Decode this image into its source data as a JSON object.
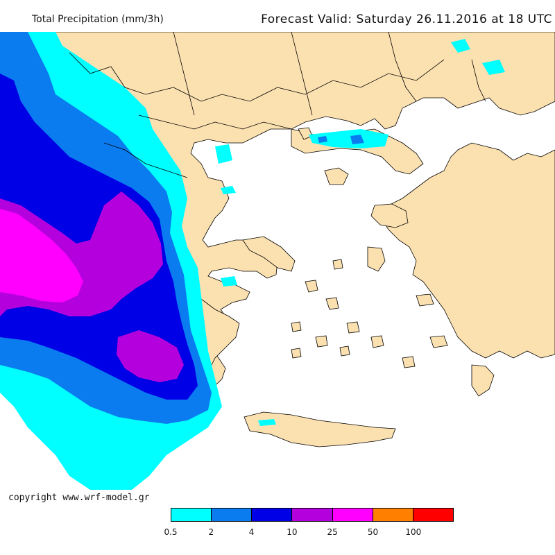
{
  "header": {
    "title": "Total Precipitation (mm/3h)",
    "forecast": "Forecast Valid:  Saturday 26.11.2016 at 18 UTC"
  },
  "footer": {
    "copyright": "copyright www.wrf-model.gr"
  },
  "legend": {
    "labels": [
      "0.5",
      "2",
      "4",
      "10",
      "25",
      "50",
      "100"
    ],
    "colors": [
      "#00ffff",
      "#0a7cf0",
      "#0000e6",
      "#b400dc",
      "#ff00ff",
      "#ff7f00",
      "#ff0000"
    ]
  },
  "map": {
    "land_color": "#fbe0b0",
    "sea_color": "#ffffff",
    "border_color": "#000000"
  }
}
